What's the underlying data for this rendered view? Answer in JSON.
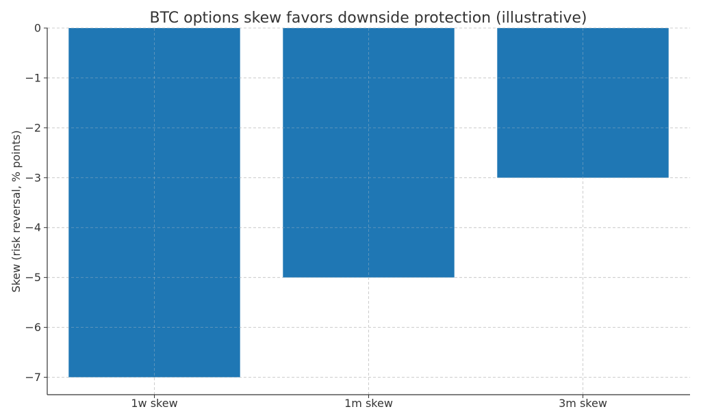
{
  "chart_data": {
    "type": "bar",
    "title": "BTC options skew favors downside protection (illustrative)",
    "xlabel": "",
    "ylabel": "Skew (risk reversal, % points)",
    "categories": [
      "1w skew",
      "1m skew",
      "3m skew"
    ],
    "values": [
      -7,
      -5,
      -3
    ],
    "ylim": [
      -7.35,
      0
    ],
    "yticks": [
      0,
      -1,
      -2,
      -3,
      -4,
      -5,
      -6,
      -7
    ],
    "ytick_labels": [
      "0",
      "−1",
      "−2",
      "−3",
      "−4",
      "−5",
      "−6",
      "−7"
    ],
    "bar_color": "#1f77b4",
    "grid": true,
    "legend": "none"
  }
}
